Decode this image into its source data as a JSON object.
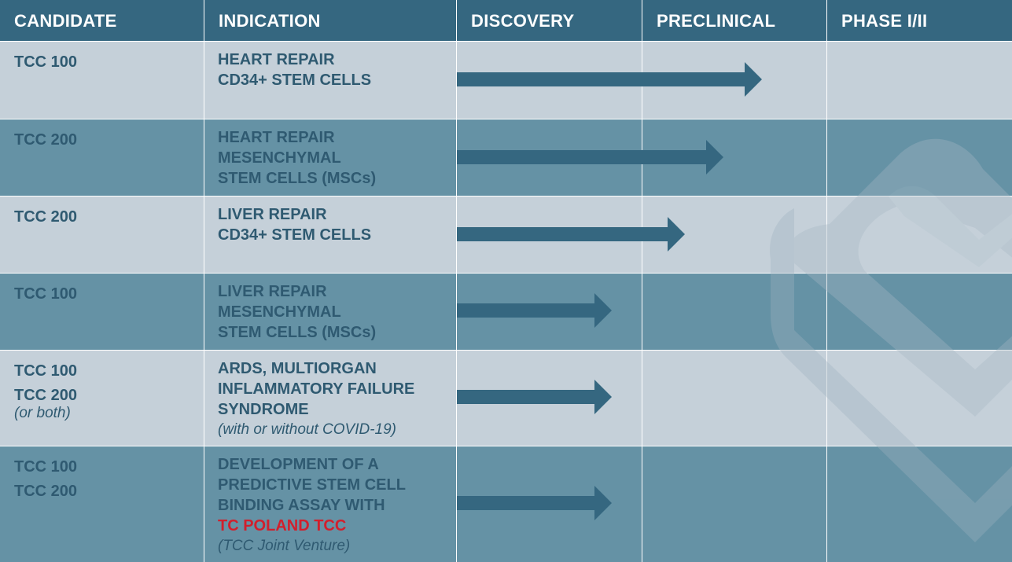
{
  "headers": [
    "CANDIDATE",
    "INDICATION",
    "DISCOVERY",
    "PRECLINICAL",
    "PHASE I/II"
  ],
  "rows": [
    {
      "candidate": [
        "TCC 100"
      ],
      "candidate_note": "",
      "indication": [
        "HEART REPAIR",
        "CD34+ STEM CELLS"
      ],
      "highlight": "",
      "indication_note": "",
      "progress": "Preclinical (late)"
    },
    {
      "candidate": [
        "TCC 200"
      ],
      "candidate_note": "",
      "indication": [
        "HEART REPAIR",
        "MESENCHYMAL",
        "STEM CELLS (MSCs)"
      ],
      "highlight": "",
      "indication_note": "",
      "progress": "Preclinical (mid)"
    },
    {
      "candidate": [
        "TCC 200"
      ],
      "candidate_note": "",
      "indication": [
        "LIVER REPAIR",
        "CD34+ STEM CELLS"
      ],
      "highlight": "",
      "indication_note": "",
      "progress": "Preclinical (early)"
    },
    {
      "candidate": [
        "TCC 100"
      ],
      "candidate_note": "",
      "indication": [
        "LIVER REPAIR",
        "MESENCHYMAL",
        "STEM CELLS (MSCs)"
      ],
      "highlight": "",
      "indication_note": "",
      "progress": "Discovery"
    },
    {
      "candidate": [
        "TCC 100",
        "TCC 200"
      ],
      "candidate_note": "(or both)",
      "indication": [
        "ARDS, MULTIORGAN",
        "INFLAMMATORY FAILURE",
        "SYNDROME"
      ],
      "highlight": "",
      "indication_note": "(with or without COVID-19)",
      "progress": "Discovery"
    },
    {
      "candidate": [
        "TCC 100",
        "TCC 200"
      ],
      "candidate_note": "",
      "indication": [
        "DEVELOPMENT OF A",
        "PREDICTIVE STEM CELL",
        "BINDING ASSAY WITH"
      ],
      "highlight": "TC POLAND TCC",
      "indication_note": "(TCC Joint Venture)",
      "progress": "Discovery"
    }
  ],
  "colors": {
    "header": "#356780",
    "row_light": "#c5d0d9",
    "row_mid": "#6592a5",
    "text": "#2f5a71",
    "arrow": "#356780",
    "highlight": "#d21f2c"
  },
  "icons": {
    "watermark": "heart-logo-icon",
    "arrow": "arrow-right-icon"
  }
}
